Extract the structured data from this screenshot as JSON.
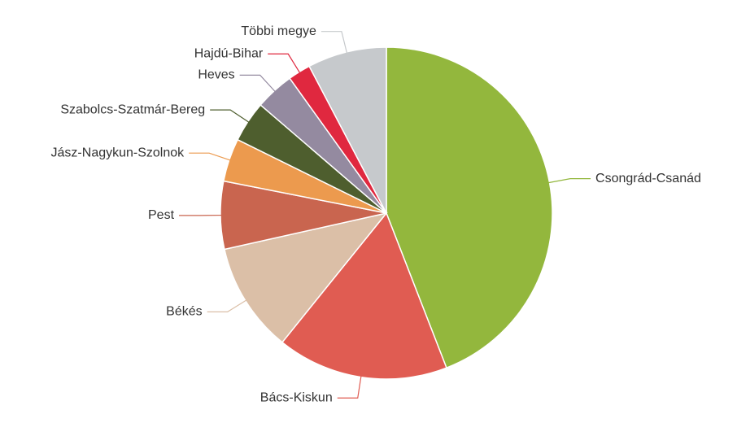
{
  "chart_data": {
    "type": "pie",
    "categories": [
      "Csongrád-Csanád",
      "Bács-Kiskun",
      "Békés",
      "Pest",
      "Jász-Nagykun-Szolnok",
      "Szabolcs-Szatmár-Bereg",
      "Heves",
      "Hajdú-Bihar",
      "Többi megye"
    ],
    "values": [
      44.1,
      16.7,
      10.7,
      6.6,
      4.2,
      4.0,
      3.8,
      2.2,
      7.7
    ],
    "colors": [
      "#93b73d",
      "#e05c52",
      "#dbbfa7",
      "#c9654f",
      "#ec9a4e",
      "#4e5e2e",
      "#948aa0",
      "#e0283f",
      "#c6c9cc"
    ]
  }
}
